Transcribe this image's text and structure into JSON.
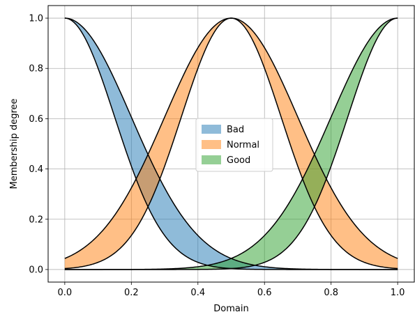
{
  "chart_data": {
    "type": "area",
    "subtype": "interval-type-2 gaussian membership functions",
    "title": "",
    "xlabel": "Domain",
    "ylabel": "Membership degree",
    "xlim": [
      -0.05,
      1.05
    ],
    "ylim": [
      -0.05,
      1.05
    ],
    "xticks": [
      0.0,
      0.2,
      0.4,
      0.6,
      0.8,
      1.0
    ],
    "xtick_labels": [
      "0.0",
      "0.2",
      "0.4",
      "0.6",
      "0.8",
      "1.0"
    ],
    "yticks": [
      0.0,
      0.2,
      0.4,
      0.6,
      0.8,
      1.0
    ],
    "ytick_labels": [
      "0.0",
      "0.2",
      "0.4",
      "0.6",
      "0.8",
      "1.0"
    ],
    "grid": true,
    "legend_position": "center",
    "series": [
      {
        "name": "Bad",
        "color": "#1f77b4",
        "mean": 0.0,
        "sigma_lower": 0.15,
        "sigma_upper": 0.2
      },
      {
        "name": "Normal",
        "color": "#ff7f0e",
        "mean": 0.5,
        "sigma_lower": 0.15,
        "sigma_upper": 0.2
      },
      {
        "name": "Good",
        "color": "#2ca02c",
        "mean": 1.0,
        "sigma_lower": 0.15,
        "sigma_upper": 0.2
      }
    ]
  }
}
